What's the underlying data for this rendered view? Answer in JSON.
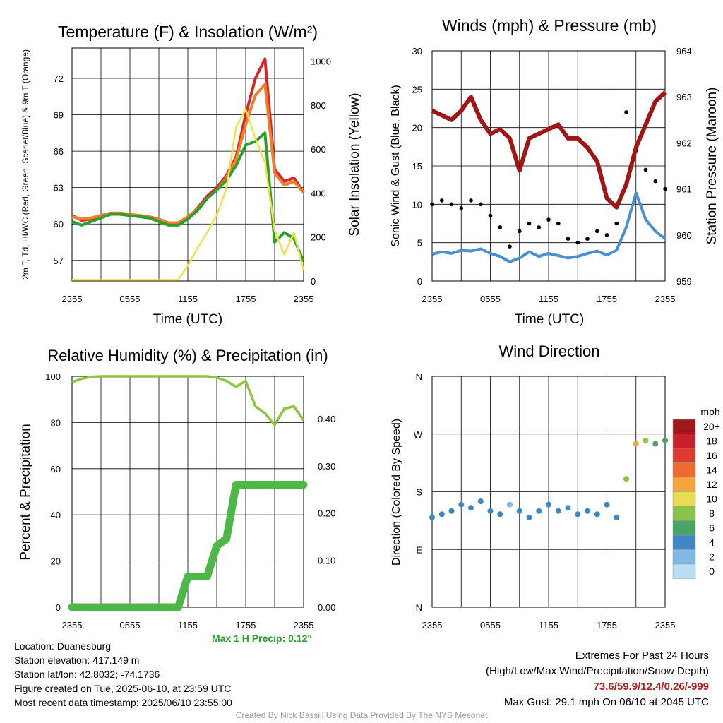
{
  "chart_data": [
    {
      "type": "line",
      "title": "Temperature (F) & Insolation (W/m²)",
      "xlabel": "Time (UTC)",
      "ylabel_left": "2m T, Td, HI/WC (Red, Green, Scarlet/Blue) & 9m T (Orange)",
      "ylabel_right": "Solar Insolation (Yellow)",
      "x_ticks": [
        "2355",
        "0555",
        "1155",
        "1755",
        "2355"
      ],
      "y_ticks_left": [
        57,
        60,
        63,
        66,
        69,
        72
      ],
      "y_ticks_right": [
        0,
        200,
        400,
        600,
        800,
        1000
      ],
      "ylim_left": [
        55.3,
        74.5
      ],
      "ylim_right": [
        0,
        1060
      ],
      "grid": true,
      "x_hours": [
        0,
        1,
        2,
        3,
        4,
        5,
        6,
        7,
        8,
        9,
        10,
        11,
        12,
        13,
        14,
        15,
        16,
        17,
        18,
        19,
        20,
        21,
        22,
        23,
        24
      ],
      "series": [
        {
          "name": "2m T",
          "color": "#d62728",
          "values": [
            60.7,
            60.3,
            60.4,
            60.6,
            60.8,
            60.8,
            60.7,
            60.6,
            60.5,
            60.3,
            60.0,
            60.0,
            60.5,
            61.3,
            62.3,
            63.0,
            64.0,
            65.5,
            69.0,
            72.0,
            73.6,
            64.5,
            63.5,
            63.8,
            62.6
          ]
        },
        {
          "name": "9m T",
          "color": "#f07f2a",
          "values": [
            60.6,
            60.4,
            60.5,
            60.7,
            60.9,
            60.9,
            60.8,
            60.7,
            60.6,
            60.4,
            60.1,
            60.1,
            60.6,
            61.2,
            62.1,
            62.8,
            63.8,
            65.3,
            68.2,
            70.6,
            71.5,
            64.2,
            63.2,
            63.5,
            62.6
          ]
        },
        {
          "name": "HI/WC",
          "color": "#2ca02c",
          "values": [
            60.2,
            59.9,
            60.2,
            60.5,
            60.8,
            60.8,
            60.7,
            60.6,
            60.5,
            60.2,
            59.9,
            59.9,
            60.4,
            61.1,
            62.1,
            62.8,
            63.6,
            64.8,
            66.5,
            66.8,
            67.5,
            58.5,
            59.3,
            58.8,
            56.9
          ]
        },
        {
          "name": "Solar Insolation",
          "color": "#f1e04a",
          "axis": "right",
          "values": [
            5,
            5,
            5,
            5,
            5,
            5,
            5,
            5,
            5,
            5,
            5,
            5,
            70,
            150,
            220,
            300,
            420,
            700,
            780,
            650,
            540,
            230,
            120,
            220,
            50
          ]
        }
      ]
    },
    {
      "type": "line",
      "title": "Winds (mph) & Pressure (mb)",
      "xlabel": "Time (UTC)",
      "ylabel_left": "Sonic Wind & Gust (Blue, Black)",
      "ylabel_right": "Station Pressure (Maroon)",
      "x_ticks": [
        "2355",
        "0555",
        "1155",
        "1755",
        "2355"
      ],
      "y_ticks_left": [
        0,
        5,
        10,
        15,
        20,
        25,
        30
      ],
      "y_ticks_right": [
        959,
        960,
        961,
        962,
        963,
        964
      ],
      "ylim_left": [
        0,
        30
      ],
      "ylim_right": [
        959,
        964
      ],
      "grid": true,
      "x_hours": [
        0,
        1,
        2,
        3,
        4,
        5,
        6,
        7,
        8,
        9,
        10,
        11,
        12,
        13,
        14,
        15,
        16,
        17,
        18,
        19,
        20,
        21,
        22,
        23,
        24
      ],
      "series": [
        {
          "name": "Sonic Wind",
          "color": "#4a90d0",
          "values": [
            3.5,
            3.8,
            3.6,
            4.0,
            3.9,
            4.2,
            3.6,
            3.2,
            2.5,
            3.0,
            3.8,
            3.2,
            3.6,
            3.3,
            3.0,
            3.2,
            3.6,
            3.9,
            3.4,
            4.0,
            7.0,
            11.5,
            8.0,
            6.5,
            5.5
          ]
        },
        {
          "name": "Gust",
          "color": "#000000",
          "values": [
            10.0,
            10.5,
            10.0,
            9.5,
            10.5,
            10.0,
            8.5,
            7.0,
            4.5,
            6.5,
            7.5,
            7.0,
            8.0,
            7.5,
            5.5,
            5.0,
            5.5,
            6.5,
            6.0,
            7.5,
            22.0,
            17.0,
            14.5,
            13.0,
            12.0
          ]
        },
        {
          "name": "Station Pressure",
          "color": "#a01515",
          "axis": "right",
          "values": [
            962.7,
            962.6,
            962.5,
            962.7,
            963.0,
            962.5,
            962.2,
            962.3,
            962.1,
            961.4,
            962.1,
            962.2,
            962.3,
            962.4,
            962.1,
            962.1,
            961.9,
            961.6,
            960.8,
            960.6,
            961.1,
            961.9,
            962.4,
            962.9,
            963.1
          ]
        }
      ]
    },
    {
      "type": "line",
      "title": "Relative Humidity (%) & Precipitation (in)",
      "ylabel_left": "Percent & Precipitation",
      "x_ticks": [
        "2355",
        "0555",
        "1155",
        "1755",
        "2355"
      ],
      "y_ticks_left": [
        0,
        20,
        40,
        60,
        80,
        100
      ],
      "y_ticks_right": [
        "0.00",
        "0.10",
        "0.20",
        "0.30",
        "0.40"
      ],
      "ylim_left": [
        0,
        100
      ],
      "ylim_right": [
        0,
        0.49
      ],
      "grid": true,
      "x_hours": [
        0,
        1,
        2,
        3,
        4,
        5,
        6,
        7,
        8,
        9,
        10,
        11,
        12,
        13,
        14,
        15,
        16,
        17,
        18,
        19,
        20,
        21,
        22,
        23,
        24
      ],
      "series": [
        {
          "name": "Relative Humidity",
          "color": "#8cc63f",
          "values": [
            97.5,
            99,
            99.8,
            100,
            100,
            100,
            100,
            100,
            100,
            100,
            100,
            100,
            100,
            100,
            100,
            99.5,
            98,
            95.5,
            98,
            87,
            84,
            79,
            86,
            87,
            81
          ]
        },
        {
          "name": "Precipitation",
          "color": "#4db848",
          "axis": "right",
          "values": [
            0,
            0,
            0,
            0,
            0,
            0,
            0,
            0,
            0,
            0,
            0,
            0,
            0.065,
            0.065,
            0.065,
            0.13,
            0.145,
            0.26,
            0.26,
            0.26,
            0.26,
            0.26,
            0.26,
            0.26,
            0.26
          ]
        }
      ]
    },
    {
      "type": "scatter",
      "title": "Wind Direction",
      "ylabel": "Direction (Colored By Speed)",
      "x_ticks": [
        "2355",
        "0555",
        "1155",
        "1755",
        "2355"
      ],
      "y_ticks": [
        "N",
        "E",
        "S",
        "W",
        "N"
      ],
      "ylim": [
        0,
        360
      ],
      "grid": true,
      "legend_title": "mph",
      "legend_labels": [
        "20+",
        "18",
        "16",
        "14",
        "12",
        "10",
        "8",
        "6",
        "4",
        "2",
        "0"
      ],
      "legend_colors": [
        "#9e1a1a",
        "#c8202a",
        "#de3b2f",
        "#ee6a2f",
        "#f5a540",
        "#eadc52",
        "#8bc34a",
        "#4aa564",
        "#3f86c4",
        "#7fb9e4",
        "#b8dff5"
      ],
      "x_hours": [
        0,
        1,
        2,
        3,
        4,
        5,
        6,
        7,
        8,
        9,
        10,
        11,
        12,
        13,
        14,
        15,
        16,
        17,
        18,
        19,
        20,
        21,
        22,
        23,
        24
      ],
      "series": [
        {
          "name": "Direction",
          "values": [
            140,
            145,
            150,
            160,
            155,
            165,
            150,
            145,
            160,
            150,
            140,
            150,
            160,
            150,
            155,
            145,
            150,
            145,
            160,
            140,
            200,
            255,
            260,
            255,
            260
          ]
        }
      ],
      "speeds": [
        3.5,
        3.8,
        3.6,
        4.0,
        3.9,
        4.2,
        3.6,
        3.2,
        2.5,
        3.0,
        3.8,
        3.2,
        3.6,
        3.3,
        3.0,
        3.2,
        3.6,
        3.9,
        3.4,
        4.0,
        7.0,
        11.5,
        8.0,
        6.5,
        5.5
      ]
    }
  ],
  "info": {
    "location": "Location: Duanesburg",
    "elevation": "Station elevation: 417.149 m",
    "latlon": "Station lat/lon: 42.8032; -74.1736",
    "created": "Figure created on Tue, 2025-06-10, at 23:59 UTC",
    "recent": "Most recent data timestamp: 2025/06/10 23:55:00"
  },
  "extremes": {
    "title": "Extremes For Past 24 Hours",
    "subtitle": "(High/Low/Max Wind/Precipitation/Snow Depth)",
    "values": "73.6/59.9/12.4/0.26/-999",
    "gust": "Max Gust: 29.1 mph On 06/10 at 2045 UTC"
  },
  "precip_note": "Max 1 H Precip: 0.12\"",
  "credit": "Created By Nick Bassill Using Data Provided By The NYS Mesonet"
}
